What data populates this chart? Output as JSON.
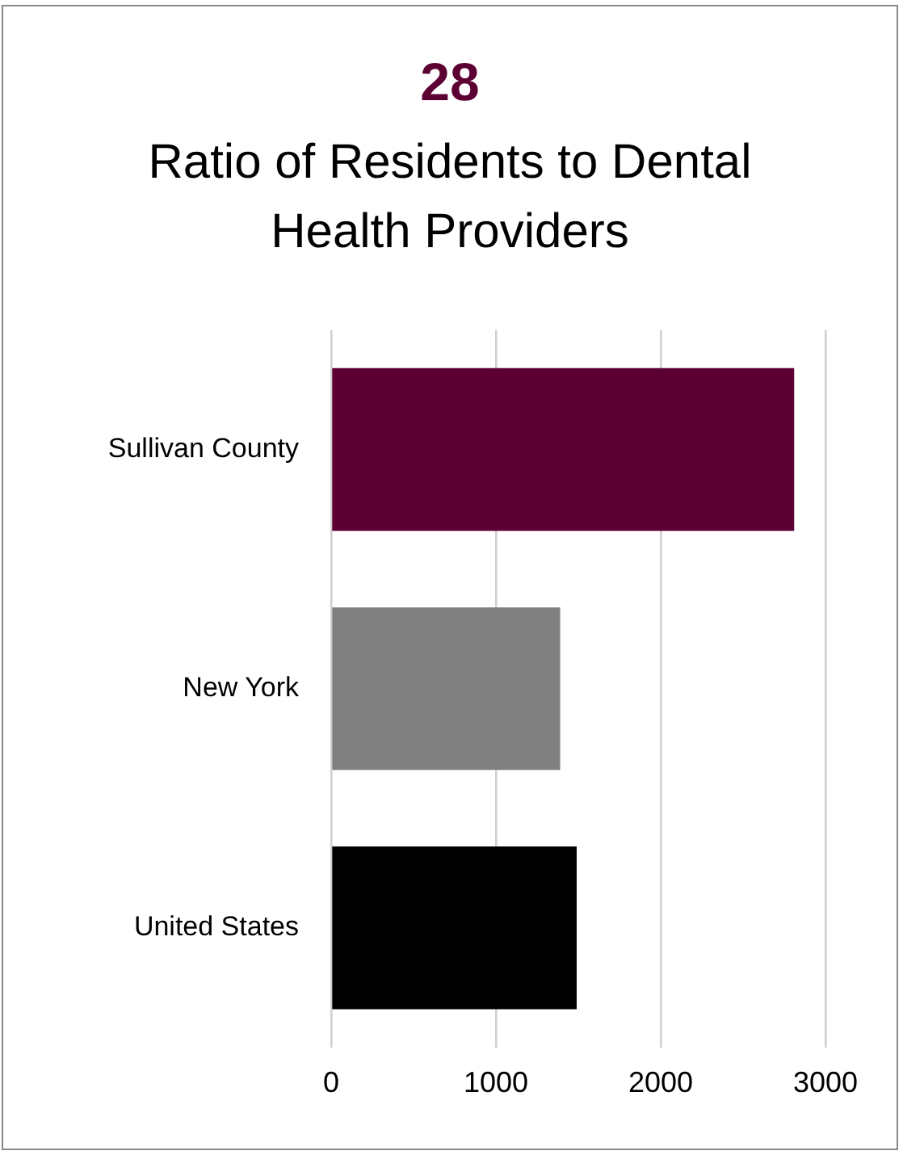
{
  "chart_data": {
    "type": "bar",
    "orientation": "horizontal",
    "title": "28",
    "subtitle": "Ratio of Residents to Dental Health Providers",
    "categories": [
      "Sullivan County",
      "New York",
      "United States"
    ],
    "values": [
      2810,
      1390,
      1490
    ],
    "colors": [
      "#5c0033",
      "#808080",
      "#000000"
    ],
    "xlim": [
      0,
      3000
    ],
    "xticks": [
      0,
      1000,
      2000,
      3000
    ],
    "grid": "x",
    "legend": false
  }
}
